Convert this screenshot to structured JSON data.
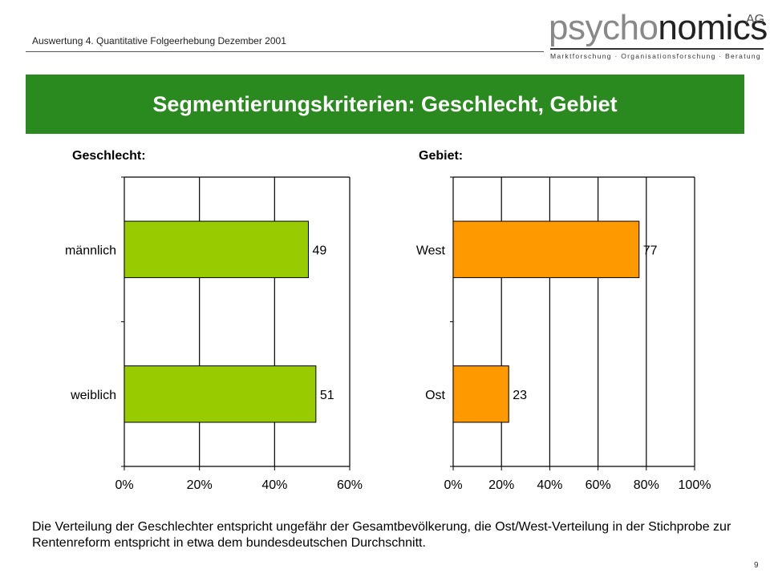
{
  "header": {
    "subtitle": "Auswertung 4. Quantitative Folgeerhebung Dezember 2001"
  },
  "logo": {
    "word_part1": "psycho",
    "word_part2": "nomics",
    "suffix": "AG",
    "tagline": "Marktforschung · Organisationsforschung · Beratung"
  },
  "banner": {
    "title": "Segmentierungskriterien: Geschlecht, Gebiet",
    "color": "#2a8a1f"
  },
  "caption": "Die Verteilung der Geschlechter entspricht ungefähr der Gesamtbevölkerung, die Ost/West-Verteilung in der Stichprobe zur Rentenreform entspricht in etwa dem bundesdeutschen Durchschnitt.",
  "page_number": "9",
  "chart_data": [
    {
      "type": "bar",
      "orientation": "horizontal",
      "title": "Geschlecht:",
      "categories": [
        "männlich",
        "weiblich"
      ],
      "values": [
        49,
        51
      ],
      "value_labels": [
        "49",
        "51"
      ],
      "xlim": [
        0,
        60
      ],
      "xticks": [
        0,
        20,
        40,
        60
      ],
      "xtick_labels": [
        "0%",
        "20%",
        "40%",
        "60%"
      ],
      "grid": true,
      "bar_color": "#99cc00"
    },
    {
      "type": "bar",
      "orientation": "horizontal",
      "title": "Gebiet:",
      "categories": [
        "West",
        "Ost"
      ],
      "values": [
        77,
        23
      ],
      "value_labels": [
        "77",
        "23"
      ],
      "xlim": [
        0,
        100
      ],
      "xticks": [
        0,
        20,
        40,
        60,
        80,
        100
      ],
      "xtick_labels": [
        "0%",
        "20%",
        "40%",
        "60%",
        "80%",
        "100%"
      ],
      "grid": true,
      "bar_color": "#ff9900"
    }
  ]
}
